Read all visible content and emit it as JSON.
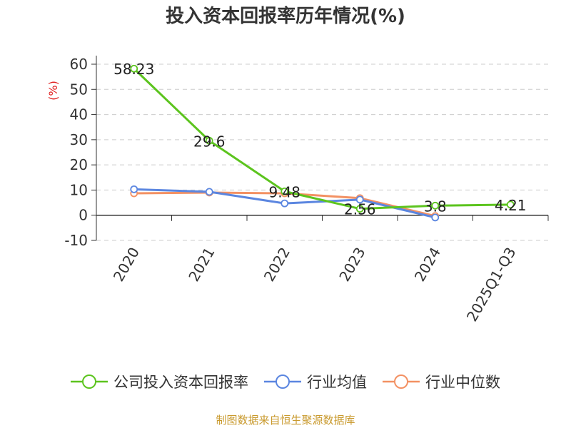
{
  "chart_data": {
    "type": "line",
    "title": "投入资本回报率历年情况(%)",
    "ylabel": "(%)",
    "categories": [
      "2020",
      "2021",
      "2022",
      "2023",
      "2024",
      "2025Q1-Q3"
    ],
    "ylim": [
      -10,
      60
    ],
    "yticks": [
      -10,
      0,
      10,
      20,
      30,
      40,
      50,
      60
    ],
    "grid": true,
    "legend_position": "bottom",
    "series": [
      {
        "name": "公司投入资本回报率",
        "color": "#5cc41e",
        "values": [
          58.23,
          29.6,
          9.48,
          2.56,
          3.8,
          4.21
        ],
        "labels": [
          "58.23",
          "29.6",
          "9.48",
          "2.56",
          "3.8",
          "4.21"
        ]
      },
      {
        "name": "行业均值",
        "color": "#5b86e0",
        "values": [
          10.3,
          9.3,
          4.7,
          6.2,
          -0.9,
          null
        ]
      },
      {
        "name": "行业中位数",
        "color": "#f39163",
        "values": [
          8.7,
          9.0,
          8.7,
          6.8,
          -0.3,
          null
        ]
      }
    ]
  },
  "footer": {
    "source": "制图数据来自恒生聚源数据库"
  }
}
